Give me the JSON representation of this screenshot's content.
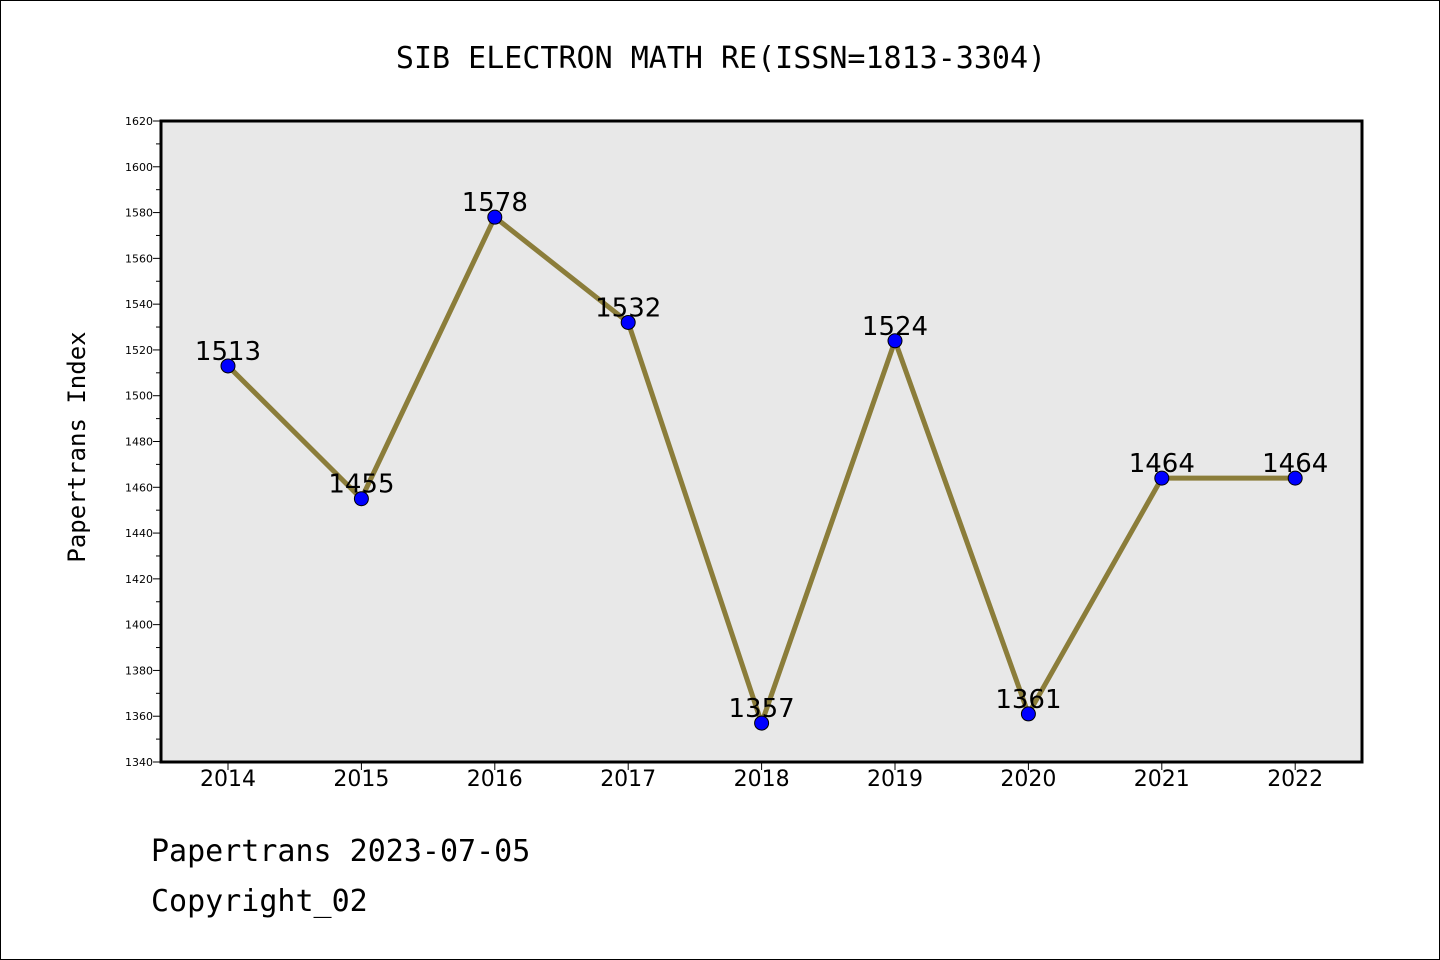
{
  "chart_data": {
    "type": "line",
    "title": "SIB ELECTRON MATH RE(ISSN=1813-3304)",
    "xlabel": "",
    "ylabel": "Papertrans Index",
    "categories": [
      "2014",
      "2015",
      "2016",
      "2017",
      "2018",
      "2019",
      "2020",
      "2021",
      "2022"
    ],
    "values": [
      1513,
      1455,
      1578,
      1532,
      1357,
      1524,
      1361,
      1464,
      1464
    ],
    "data_labels": [
      "1513",
      "1455",
      "1578",
      "1532",
      "1357",
      "1524",
      "1361",
      "1464",
      "1464"
    ],
    "ylim": [
      1340,
      1620
    ],
    "yticks": [
      1340,
      1360,
      1380,
      1400,
      1420,
      1440,
      1460,
      1480,
      1500,
      1520,
      1540,
      1560,
      1580,
      1600,
      1620
    ],
    "ytick_labels": [
      "1340",
      "1360",
      "1380",
      "1400",
      "1420",
      "1440",
      "1460",
      "1480",
      "1500",
      "1520",
      "1540",
      "1560",
      "1580",
      "1600",
      "1620"
    ],
    "grid": false,
    "legend": "none",
    "line_color": "#8b7d3a",
    "marker_color": "#0000ff",
    "plot_background": "#e8e8e8"
  },
  "footer": {
    "line1": "Papertrans 2023-07-05",
    "line2": "Copyright_02"
  }
}
